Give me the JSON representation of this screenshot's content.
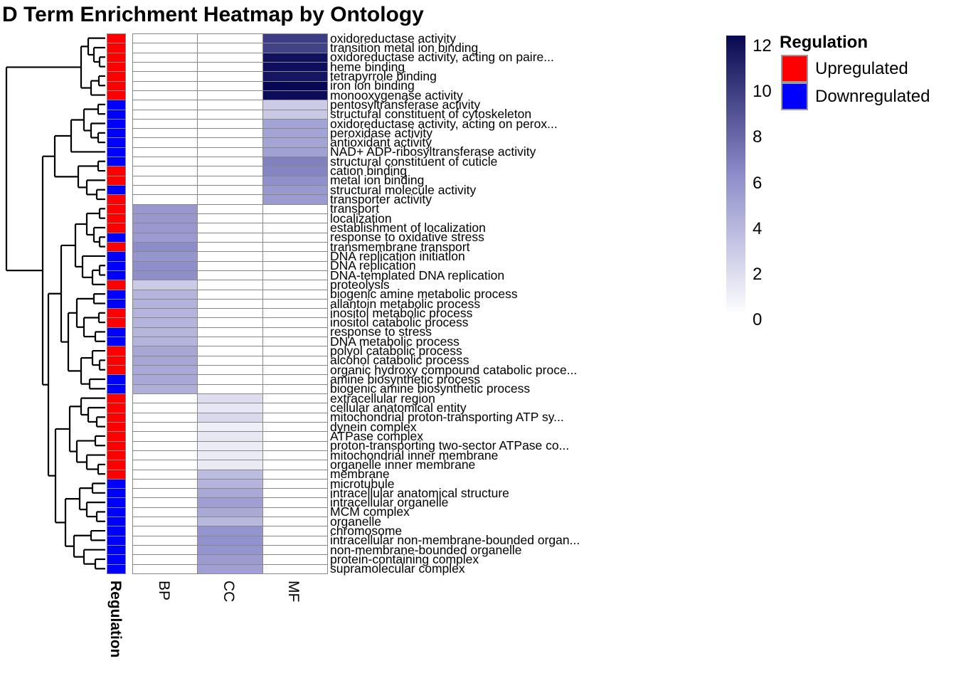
{
  "title": "D Term Enrichment Heatmap by Ontology",
  "annotation_label": "Regulation",
  "legend": {
    "title": "Regulation",
    "items": [
      {
        "label": "Upregulated",
        "color": "#FF0000"
      },
      {
        "label": "Downregulated",
        "color": "#0000FF"
      }
    ]
  },
  "chart_data": {
    "type": "heatmap",
    "title": "D Term Enrichment Heatmap by Ontology",
    "columns": [
      "BP",
      "CC",
      "MF"
    ],
    "colorbar": {
      "min": 0,
      "max": 12,
      "ticks": [
        12,
        10,
        8,
        6,
        4,
        2,
        0
      ],
      "low_color": "#FFFFFF",
      "high_color": "#000060"
    },
    "regulation_colors": {
      "Upregulated": "#FF0000",
      "Downregulated": "#0000FF"
    },
    "rows": [
      {
        "label": "oxidoreductase activity",
        "ontology": "MF",
        "value": 9.5,
        "regulation": "Upregulated"
      },
      {
        "label": "transition metal ion binding",
        "ontology": "MF",
        "value": 9.3,
        "regulation": "Upregulated"
      },
      {
        "label": "oxidoreductase activity, acting on paire...",
        "ontology": "MF",
        "value": 11.5,
        "regulation": "Upregulated"
      },
      {
        "label": "heme binding",
        "ontology": "MF",
        "value": 11.6,
        "regulation": "Upregulated"
      },
      {
        "label": "tetrapyrrole binding",
        "ontology": "MF",
        "value": 11.3,
        "regulation": "Upregulated"
      },
      {
        "label": "iron ion binding",
        "ontology": "MF",
        "value": 11.9,
        "regulation": "Upregulated"
      },
      {
        "label": "monooxygenase activity",
        "ontology": "MF",
        "value": 11.7,
        "regulation": "Upregulated"
      },
      {
        "label": "pentosyltransferase activity",
        "ontology": "MF",
        "value": 2.7,
        "regulation": "Downregulated"
      },
      {
        "label": "structural constituent of cytoskeleton",
        "ontology": "MF",
        "value": 2.8,
        "regulation": "Downregulated"
      },
      {
        "label": "oxidoreductase activity, acting on perox...",
        "ontology": "MF",
        "value": 4.8,
        "regulation": "Downregulated"
      },
      {
        "label": "peroxidase activity",
        "ontology": "MF",
        "value": 4.8,
        "regulation": "Downregulated"
      },
      {
        "label": "antioxidant activity",
        "ontology": "MF",
        "value": 4.7,
        "regulation": "Downregulated"
      },
      {
        "label": "NAD+ ADP-ribosyltransferase activity",
        "ontology": "MF",
        "value": 4.9,
        "regulation": "Downregulated"
      },
      {
        "label": "structural constituent of cuticle",
        "ontology": "MF",
        "value": 6.5,
        "regulation": "Downregulated"
      },
      {
        "label": "cation binding",
        "ontology": "MF",
        "value": 6.3,
        "regulation": "Upregulated"
      },
      {
        "label": "metal ion binding",
        "ontology": "MF",
        "value": 5.8,
        "regulation": "Upregulated"
      },
      {
        "label": "structural molecule activity",
        "ontology": "MF",
        "value": 5.3,
        "regulation": "Downregulated"
      },
      {
        "label": "transporter activity",
        "ontology": "MF",
        "value": 5.2,
        "regulation": "Upregulated"
      },
      {
        "label": "transport",
        "ontology": "BP",
        "value": 5.4,
        "regulation": "Upregulated"
      },
      {
        "label": "localization",
        "ontology": "BP",
        "value": 5.4,
        "regulation": "Upregulated"
      },
      {
        "label": "establishment of localization",
        "ontology": "BP",
        "value": 5.4,
        "regulation": "Upregulated"
      },
      {
        "label": "response to oxidative stress",
        "ontology": "BP",
        "value": 5.2,
        "regulation": "Downregulated"
      },
      {
        "label": "transmembrane transport",
        "ontology": "BP",
        "value": 6.0,
        "regulation": "Upregulated"
      },
      {
        "label": "DNA replication initiation",
        "ontology": "BP",
        "value": 5.5,
        "regulation": "Downregulated"
      },
      {
        "label": "DNA replication",
        "ontology": "BP",
        "value": 5.9,
        "regulation": "Downregulated"
      },
      {
        "label": "DNA-templated DNA replication",
        "ontology": "BP",
        "value": 5.9,
        "regulation": "Downregulated"
      },
      {
        "label": "proteolysis",
        "ontology": "BP",
        "value": 2.7,
        "regulation": "Upregulated"
      },
      {
        "label": "biogenic amine metabolic process",
        "ontology": "BP",
        "value": 3.9,
        "regulation": "Downregulated"
      },
      {
        "label": "allantoin metabolic process",
        "ontology": "BP",
        "value": 4.0,
        "regulation": "Downregulated"
      },
      {
        "label": "inositol metabolic process",
        "ontology": "BP",
        "value": 3.9,
        "regulation": "Upregulated"
      },
      {
        "label": "inositol catabolic process",
        "ontology": "BP",
        "value": 3.9,
        "regulation": "Upregulated"
      },
      {
        "label": "response to stress",
        "ontology": "BP",
        "value": 3.8,
        "regulation": "Downregulated"
      },
      {
        "label": "DNA metabolic process",
        "ontology": "BP",
        "value": 3.9,
        "regulation": "Downregulated"
      },
      {
        "label": "polyol catabolic process",
        "ontology": "BP",
        "value": 4.6,
        "regulation": "Upregulated"
      },
      {
        "label": "alcohol catabolic process",
        "ontology": "BP",
        "value": 4.6,
        "regulation": "Upregulated"
      },
      {
        "label": "organic hydroxy compound catabolic proce...",
        "ontology": "BP",
        "value": 4.5,
        "regulation": "Upregulated"
      },
      {
        "label": "amine biosynthetic process",
        "ontology": "BP",
        "value": 4.5,
        "regulation": "Downregulated"
      },
      {
        "label": "biogenic amine biosynthetic process",
        "ontology": "BP",
        "value": 4.2,
        "regulation": "Downregulated"
      },
      {
        "label": "extracellular region",
        "ontology": "CC",
        "value": 1.8,
        "regulation": "Upregulated"
      },
      {
        "label": "cellular anatomical entity",
        "ontology": "CC",
        "value": 1.3,
        "regulation": "Upregulated"
      },
      {
        "label": "mitochondrial proton-transporting ATP sy...",
        "ontology": "CC",
        "value": 2.0,
        "regulation": "Upregulated"
      },
      {
        "label": "dynein complex",
        "ontology": "CC",
        "value": 0.9,
        "regulation": "Upregulated"
      },
      {
        "label": "ATPase complex",
        "ontology": "CC",
        "value": 1.2,
        "regulation": "Upregulated"
      },
      {
        "label": "proton-transporting two-sector ATPase co...",
        "ontology": "CC",
        "value": 1.0,
        "regulation": "Upregulated"
      },
      {
        "label": "mitochondrial inner membrane",
        "ontology": "CC",
        "value": 1.1,
        "regulation": "Upregulated"
      },
      {
        "label": "organelle inner membrane",
        "ontology": "CC",
        "value": 1.1,
        "regulation": "Upregulated"
      },
      {
        "label": "membrane",
        "ontology": "CC",
        "value": 3.5,
        "regulation": "Upregulated"
      },
      {
        "label": "microtubule",
        "ontology": "CC",
        "value": 3.9,
        "regulation": "Downregulated"
      },
      {
        "label": "intracellular anatomical structure",
        "ontology": "CC",
        "value": 4.5,
        "regulation": "Downregulated"
      },
      {
        "label": "intracellular organelle",
        "ontology": "CC",
        "value": 5.0,
        "regulation": "Downregulated"
      },
      {
        "label": "MCM complex",
        "ontology": "CC",
        "value": 4.5,
        "regulation": "Downregulated"
      },
      {
        "label": "organelle",
        "ontology": "CC",
        "value": 3.7,
        "regulation": "Downregulated"
      },
      {
        "label": "chromosome",
        "ontology": "CC",
        "value": 5.6,
        "regulation": "Downregulated"
      },
      {
        "label": "intracellular non-membrane-bounded organ...",
        "ontology": "CC",
        "value": 5.7,
        "regulation": "Downregulated"
      },
      {
        "label": "non-membrane-bounded organelle",
        "ontology": "CC",
        "value": 5.6,
        "regulation": "Downregulated"
      },
      {
        "label": "protein-containing complex",
        "ontology": "CC",
        "value": 5.2,
        "regulation": "Downregulated"
      },
      {
        "label": "supramolecular complex",
        "ontology": "CC",
        "value": 5.0,
        "regulation": "Downregulated"
      }
    ],
    "row_dendrogram": [
      139,
      [
        34,
        [
          24,
          0,
          [
            16,
            1,
            [
              8,
              2,
              3
            ]
          ]
        ],
        [
          20,
          [
            9,
            4,
            5
          ],
          6
        ]
      ],
      [
        88,
        [
          71,
          [
            48,
            [
              30,
              [
                10,
                7,
                8
              ],
              [
                20,
                9,
                [
                  10,
                  10,
                  11
                ]
              ]
            ],
            12
          ],
          [
            38,
            [
              10,
              13,
              14
            ],
            [
              26,
              15,
              [
                12,
                16,
                17
              ]
            ]
          ]
        ],
        [
          80,
          [
            62,
            [
              42,
              [
                26,
                [
                  8,
                  18,
                  19
                ],
                [
                  16,
                  20,
                  [
                    8,
                    21,
                    22
                  ]
                ]
              ],
              [
                32,
                23,
                [
                  18,
                  [
                    8,
                    24,
                    25
                  ],
                  26
                ]
              ]
            ],
            [
              52,
              [
                40,
                [
                  16,
                  27,
                  28
                ],
                [
                  30,
                  [
                    9,
                    29,
                    30
                  ],
                  [
                    14,
                    31,
                    32
                  ]
                ]
              ],
              [
                34,
                [
                  18,
                  33,
                  [
                    8,
                    34,
                    35
                  ]
                ],
                [
                  22,
                  36,
                  37
                ]
              ]
            ]
          ],
          [
            70,
            [
              50,
              [
                34,
                38,
                [
                  24,
                  39,
                  [
                    12,
                    40,
                    41
                  ]
                ]
              ],
              [
                40,
                [
                  14,
                  42,
                  43
                ],
                [
                  26,
                  44,
                  [
                    10,
                    45,
                    46
                  ]
                ]
              ]
            ],
            [
              56,
              [
                36,
                [
                  18,
                  47,
                  48
                ],
                [
                  26,
                  49,
                  [
                    12,
                    50,
                    51
                  ]
                ]
              ],
              [
                44,
                [
                  20,
                  52,
                  53
                ],
                [
                  30,
                  54,
                  [
                    14,
                    55,
                    56
                  ]
                ]
              ]
            ]
          ]
        ]
      ]
    ]
  }
}
